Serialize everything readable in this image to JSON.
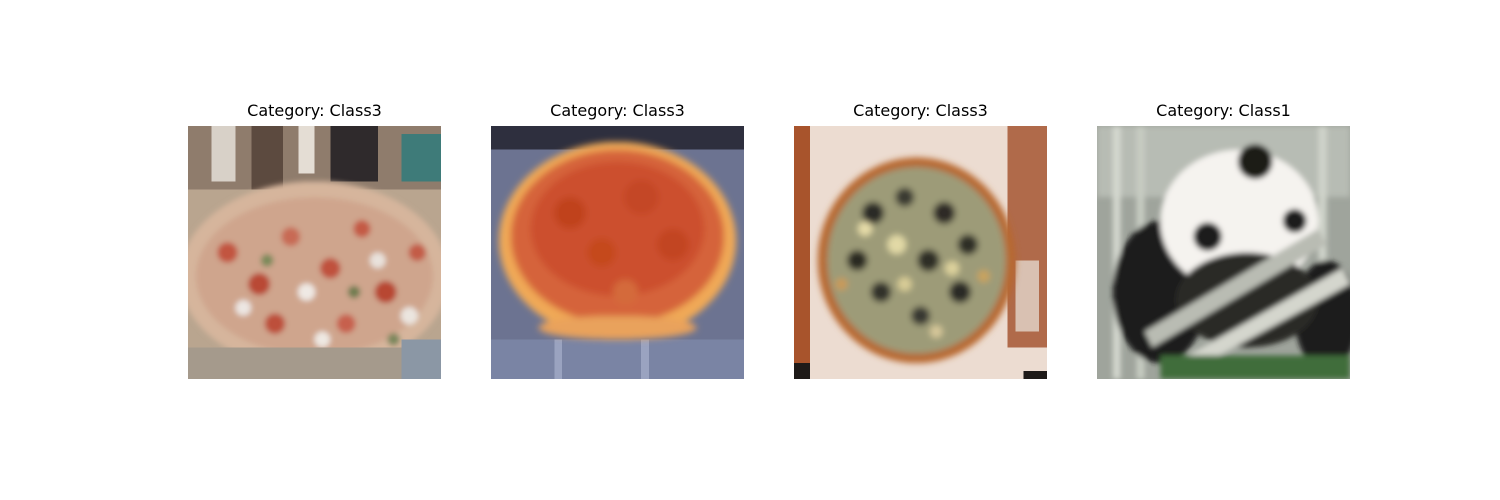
{
  "panels": [
    {
      "title": "Category: Class3",
      "image": "pizza-photo",
      "alt": "pizza photo"
    },
    {
      "title": "Category: Class3",
      "image": "pizza-photo",
      "alt": "pizza photo"
    },
    {
      "title": "Category: Class3",
      "image": "pizza-photo",
      "alt": "pizza photo"
    },
    {
      "title": "Category: Class1",
      "image": "panda-photo",
      "alt": "panda photo"
    }
  ]
}
